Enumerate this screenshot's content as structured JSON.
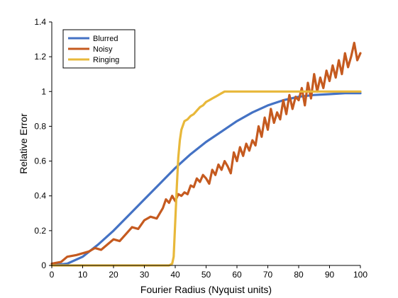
{
  "chart_data": {
    "type": "line",
    "title": "",
    "xlabel": "Fourier Radius (Nyquist units)",
    "ylabel": "Relative Error",
    "xlim": [
      0,
      100
    ],
    "ylim": [
      0,
      1.4
    ],
    "xticks": [
      "0",
      "10",
      "20",
      "30",
      "40",
      "50",
      "60",
      "70",
      "80",
      "90",
      "100"
    ],
    "yticks": [
      "0",
      "0.2",
      "0.4",
      "0.6",
      "0.8",
      "1",
      "1.2",
      "1.4"
    ],
    "grid": false,
    "legend_position": "top-left",
    "series": [
      {
        "name": "Blurred",
        "color": "#4472C4",
        "x": [
          0,
          5,
          10,
          15,
          20,
          25,
          30,
          35,
          40,
          45,
          50,
          55,
          60,
          65,
          70,
          75,
          80,
          85,
          90,
          95,
          100
        ],
        "y": [
          0,
          0.01,
          0.05,
          0.12,
          0.2,
          0.29,
          0.38,
          0.47,
          0.56,
          0.64,
          0.71,
          0.77,
          0.83,
          0.88,
          0.92,
          0.95,
          0.97,
          0.98,
          0.985,
          0.99,
          0.99
        ]
      },
      {
        "name": "Noisy",
        "color": "#C55A1F",
        "x": [
          0,
          3,
          5,
          8,
          10,
          12,
          14,
          16,
          18,
          20,
          22,
          24,
          26,
          28,
          30,
          32,
          34,
          36,
          37,
          38,
          39,
          40,
          41,
          42,
          43,
          44,
          45,
          46,
          47,
          48,
          49,
          50,
          51,
          52,
          53,
          54,
          55,
          56,
          57,
          58,
          59,
          60,
          61,
          62,
          63,
          64,
          65,
          66,
          67,
          68,
          69,
          70,
          71,
          72,
          73,
          74,
          75,
          76,
          77,
          78,
          79,
          80,
          81,
          82,
          83,
          84,
          85,
          86,
          87,
          88,
          89,
          90,
          91,
          92,
          93,
          94,
          95,
          96,
          97,
          98,
          99,
          100
        ],
        "y": [
          0.01,
          0.02,
          0.05,
          0.06,
          0.07,
          0.08,
          0.1,
          0.09,
          0.12,
          0.15,
          0.14,
          0.18,
          0.22,
          0.21,
          0.26,
          0.28,
          0.27,
          0.33,
          0.38,
          0.36,
          0.4,
          0.37,
          0.41,
          0.4,
          0.42,
          0.41,
          0.46,
          0.45,
          0.5,
          0.48,
          0.52,
          0.5,
          0.47,
          0.55,
          0.52,
          0.58,
          0.55,
          0.6,
          0.57,
          0.53,
          0.65,
          0.6,
          0.68,
          0.63,
          0.7,
          0.66,
          0.72,
          0.69,
          0.8,
          0.74,
          0.85,
          0.78,
          0.9,
          0.82,
          0.88,
          0.84,
          0.95,
          0.87,
          0.98,
          0.9,
          0.97,
          0.95,
          1.02,
          0.92,
          1.05,
          0.96,
          1.1,
          1.0,
          1.08,
          1.02,
          1.12,
          1.06,
          1.15,
          1.08,
          1.18,
          1.1,
          1.22,
          1.14,
          1.2,
          1.28,
          1.18,
          1.22
        ]
      },
      {
        "name": "Ringing",
        "color": "#E8B83A",
        "x": [
          0,
          10,
          20,
          30,
          37,
          38,
          39,
          39.5,
          40,
          40.5,
          41,
          41.5,
          42,
          43,
          44,
          45,
          46,
          47,
          48,
          49,
          50,
          51,
          52,
          53,
          54,
          55,
          56,
          57,
          60,
          70,
          80,
          90,
          100
        ],
        "y": [
          0,
          0,
          0,
          0,
          0,
          0,
          0.01,
          0.05,
          0.25,
          0.45,
          0.62,
          0.72,
          0.78,
          0.83,
          0.84,
          0.86,
          0.87,
          0.89,
          0.91,
          0.92,
          0.94,
          0.95,
          0.96,
          0.97,
          0.98,
          0.99,
          1.0,
          1.0,
          1.0,
          1.0,
          1.0,
          1.0,
          1.0
        ]
      }
    ]
  }
}
